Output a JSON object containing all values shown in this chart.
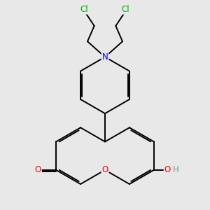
{
  "bg_color": "#e8e8e8",
  "bond_color": "#000000",
  "bond_width": 1.4,
  "atom_colors": {
    "N": "#0000ff",
    "O": "#ff0000",
    "Cl": "#00aa00",
    "OH_H": "#5f9ea0"
  },
  "font_size": 8.5,
  "figsize": [
    3.0,
    3.0
  ],
  "dpi": 100
}
